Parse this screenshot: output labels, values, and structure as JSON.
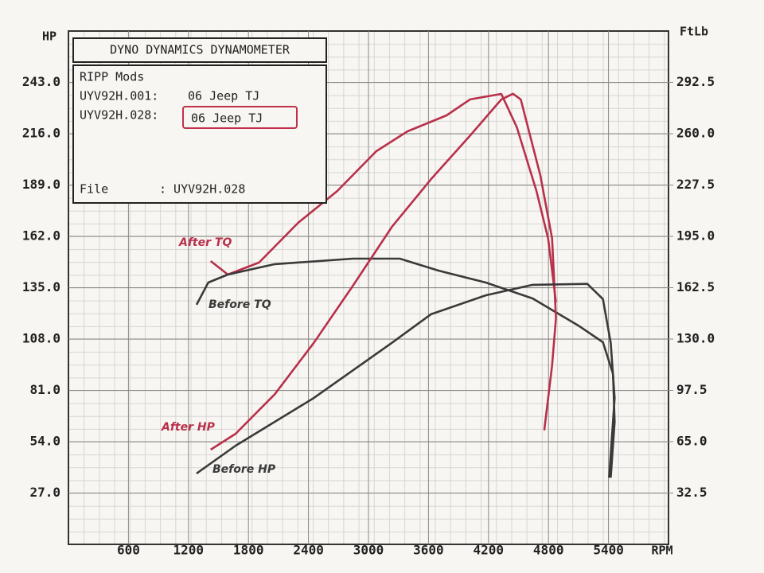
{
  "chart_data": {
    "type": "line",
    "title": "DYNO DYNAMICS DYNAMOMETER",
    "info": {
      "header": "RIPP Mods",
      "runs": [
        {
          "file": "UYV92H.001:",
          "vehicle": "06 Jeep TJ"
        },
        {
          "file": "UYV92H.028:",
          "vehicle": "06 Jeep TJ"
        }
      ],
      "file_label": "File",
      "file_value": ": UYV92H.028"
    },
    "y_label": "HP",
    "y2_label": "FtLb",
    "x_label": "RPM",
    "xlim": [
      0,
      6000
    ],
    "xticks": [
      600,
      1200,
      1800,
      2400,
      3000,
      3600,
      4200,
      4800,
      5400
    ],
    "ylim": [
      0,
      270
    ],
    "yticks": [
      {
        "value": 27,
        "label": "27.0"
      },
      {
        "value": 54,
        "label": "54.0"
      },
      {
        "value": 81,
        "label": "81.0"
      },
      {
        "value": 108,
        "label": "108.0"
      },
      {
        "value": 135,
        "label": "135.0"
      },
      {
        "value": 162,
        "label": "162.0"
      },
      {
        "value": 189,
        "label": "189.0"
      },
      {
        "value": 216,
        "label": "216.0"
      },
      {
        "value": 243,
        "label": "243.0"
      }
    ],
    "y2lim": [
      0,
      325
    ],
    "y2ticks": [
      32.5,
      {
        "value": 65,
        "label": "65.0"
      },
      97.5,
      {
        "value": 130,
        "label": "130.0"
      },
      162.5,
      {
        "value": 195,
        "label": "195.0"
      },
      227.5,
      {
        "value": 260,
        "label": "260.0"
      },
      292.5
    ],
    "grid": true,
    "series": [
      {
        "name": "After TQ",
        "color": "#b8304a",
        "axis": "y2",
        "x": [
          1422,
          1594,
          1906,
          2297,
          2688,
          3078,
          3391,
          3781,
          4016,
          4328,
          4484,
          4680,
          4797,
          4875
        ],
        "values": [
          179.4,
          170.8,
          178.4,
          203.6,
          223.7,
          248.9,
          261.5,
          271.6,
          281.7,
          285.2,
          264,
          223.7,
          193.5,
          153.2
        ]
      },
      {
        "name": "Before TQ",
        "color": "#3a3a3a",
        "axis": "y2",
        "x": [
          1281,
          1398,
          1594,
          2063,
          2844,
          3313,
          3703,
          4172,
          4641,
          5109,
          5344,
          5445,
          5461,
          5422
        ],
        "values": [
          151.7,
          165.8,
          170.8,
          177.4,
          180.9,
          180.9,
          173.3,
          165.8,
          155.7,
          138.1,
          128,
          107.9,
          77.6,
          42.3
        ]
      },
      {
        "name": "After HP",
        "color": "#b8304a",
        "x": [
          1422,
          1672,
          2063,
          2453,
          2844,
          3234,
          3625,
          4016,
          4328,
          4445,
          4523,
          4719,
          4836,
          4875,
          4836,
          4758
        ],
        "values": [
          49.8,
          58.2,
          79,
          106,
          136,
          167,
          192,
          215,
          234,
          237,
          234,
          194,
          161,
          119,
          94,
          60
        ]
      },
      {
        "name": "Before HP",
        "color": "#3a3a3a",
        "x": [
          1281,
          1672,
          2453,
          3234,
          3625,
          4172,
          4641,
          5188,
          5344,
          5422,
          5461,
          5406
        ],
        "values": [
          37.3,
          51.9,
          77,
          106,
          121,
          131,
          136.5,
          137,
          129,
          106,
          77,
          35
        ]
      }
    ]
  }
}
